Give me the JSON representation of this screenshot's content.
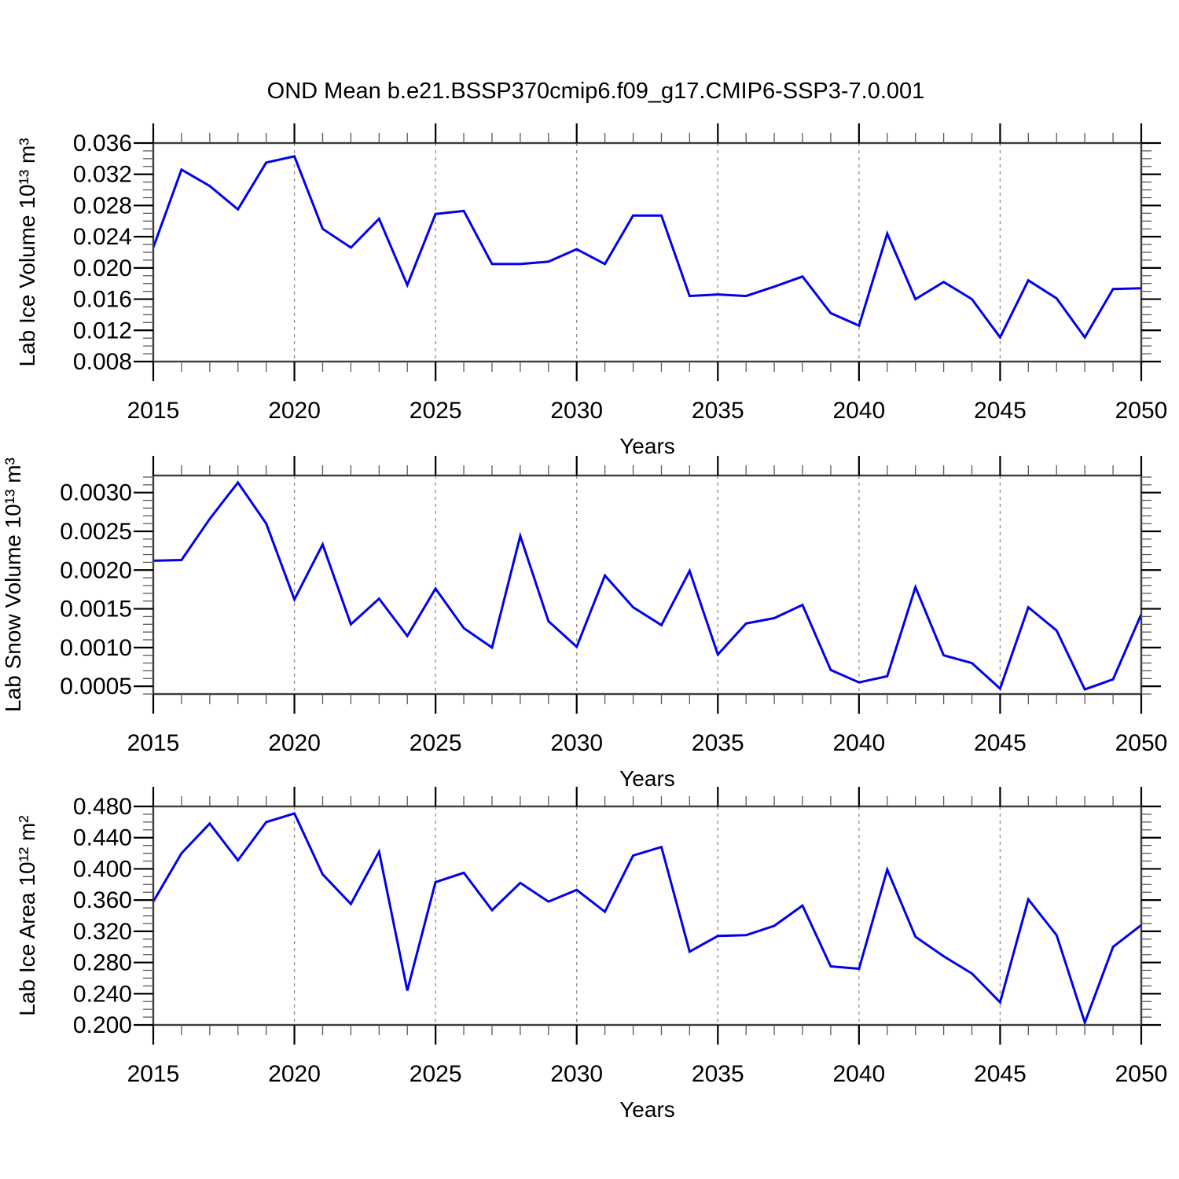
{
  "figure": {
    "title": "OND Mean b.e21.BSSP370cmip6.f09_g17.CMIP6-SSP3-7.0.001",
    "line_color": "#0000ee",
    "grid_color": "#8c8c8c",
    "background": "#ffffff"
  },
  "chart_data": [
    {
      "type": "line",
      "name": "ice-volume",
      "ylabel": "Lab Ice Volume 10¹³ m³",
      "xlabel": "Years",
      "xlim": [
        2015,
        2050
      ],
      "ylim": [
        0.008,
        0.036
      ],
      "x_major_ticks": [
        2015,
        2020,
        2025,
        2030,
        2035,
        2040,
        2045,
        2050
      ],
      "x_tick_labels": [
        "2015",
        "2020",
        "2025",
        "2030",
        "2035",
        "2040",
        "2045",
        "2050"
      ],
      "x_minor_step": 1,
      "y_major_ticks": [
        0.036,
        0.032,
        0.028,
        0.024,
        0.02,
        0.016,
        0.012,
        0.008
      ],
      "y_tick_labels": [
        "0.036",
        "0.032",
        "0.028",
        "0.024",
        "0.020",
        "0.016",
        "0.012",
        "0.008"
      ],
      "y_minor_step": 0.001,
      "gridline_years": [
        2020,
        2025,
        2030,
        2035,
        2040,
        2045
      ],
      "grid": true,
      "legend": null,
      "x": [
        2015,
        2016,
        2017,
        2018,
        2019,
        2020,
        2021,
        2022,
        2023,
        2024,
        2025,
        2026,
        2027,
        2028,
        2029,
        2030,
        2031,
        2032,
        2033,
        2034,
        2035,
        2036,
        2037,
        2038,
        2039,
        2040,
        2041,
        2042,
        2043,
        2044,
        2045,
        2046,
        2047,
        2048,
        2049,
        2050
      ],
      "values": [
        0.0226,
        0.0326,
        0.0305,
        0.0275,
        0.0335,
        0.0343,
        0.025,
        0.0226,
        0.0263,
        0.0178,
        0.0269,
        0.0273,
        0.0205,
        0.0205,
        0.0208,
        0.0224,
        0.0205,
        0.0267,
        0.0267,
        0.0164,
        0.0166,
        0.0164,
        0.0176,
        0.0189,
        0.0142,
        0.0126,
        0.0244,
        0.016,
        0.0182,
        0.016,
        0.0111,
        0.0184,
        0.0161,
        0.0111,
        0.0173,
        0.0174
      ]
    },
    {
      "type": "line",
      "name": "snow-volume",
      "ylabel": "Lab Snow Volume 10¹³ m³",
      "xlabel": "Years",
      "xlim": [
        2015,
        2050
      ],
      "ylim": [
        0.0004,
        0.00322
      ],
      "x_major_ticks": [
        2015,
        2020,
        2025,
        2030,
        2035,
        2040,
        2045,
        2050
      ],
      "x_tick_labels": [
        "2015",
        "2020",
        "2025",
        "2030",
        "2035",
        "2040",
        "2045",
        "2050"
      ],
      "x_minor_step": 1,
      "y_major_ticks": [
        0.003,
        0.0025,
        0.002,
        0.0015,
        0.001,
        0.0005
      ],
      "y_tick_labels": [
        "0.0030",
        "0.0025",
        "0.0020",
        "0.0015",
        "0.0010",
        "0.0005"
      ],
      "y_minor_step": 0.0001,
      "gridline_years": [
        2020,
        2025,
        2030,
        2035,
        2040,
        2045
      ],
      "grid": true,
      "legend": null,
      "x": [
        2015,
        2016,
        2017,
        2018,
        2019,
        2020,
        2021,
        2022,
        2023,
        2024,
        2025,
        2026,
        2027,
        2028,
        2029,
        2030,
        2031,
        2032,
        2033,
        2034,
        2035,
        2036,
        2037,
        2038,
        2039,
        2040,
        2041,
        2042,
        2043,
        2044,
        2045,
        2046,
        2047,
        2048,
        2049,
        2050
      ],
      "values": [
        0.00212,
        0.00213,
        0.00266,
        0.00313,
        0.0026,
        0.00162,
        0.00233,
        0.0013,
        0.00163,
        0.00115,
        0.00176,
        0.00125,
        0.001,
        0.00244,
        0.00134,
        0.00101,
        0.00193,
        0.00152,
        0.00129,
        0.00199,
        0.00091,
        0.00131,
        0.00138,
        0.00155,
        0.00071,
        0.00055,
        0.00063,
        0.00178,
        0.0009,
        0.0008,
        0.00047,
        0.00152,
        0.00122,
        0.00046,
        0.00059,
        0.00143
      ]
    },
    {
      "type": "line",
      "name": "ice-area",
      "ylabel": "Lab Ice Area 10¹² m²",
      "xlabel": "Years",
      "xlim": [
        2015,
        2050
      ],
      "ylim": [
        0.2,
        0.48
      ],
      "x_major_ticks": [
        2015,
        2020,
        2025,
        2030,
        2035,
        2040,
        2045,
        2050
      ],
      "x_tick_labels": [
        "2015",
        "2020",
        "2025",
        "2030",
        "2035",
        "2040",
        "2045",
        "2050"
      ],
      "x_minor_step": 1,
      "y_major_ticks": [
        0.48,
        0.44,
        0.4,
        0.36,
        0.32,
        0.28,
        0.24,
        0.2
      ],
      "y_tick_labels": [
        "0.480",
        "0.440",
        "0.400",
        "0.360",
        "0.320",
        "0.280",
        "0.240",
        "0.200"
      ],
      "y_minor_step": 0.01,
      "gridline_years": [
        2020,
        2025,
        2030,
        2035,
        2040,
        2045
      ],
      "grid": true,
      "legend": null,
      "x": [
        2015,
        2016,
        2017,
        2018,
        2019,
        2020,
        2021,
        2022,
        2023,
        2024,
        2025,
        2026,
        2027,
        2028,
        2029,
        2030,
        2031,
        2032,
        2033,
        2034,
        2035,
        2036,
        2037,
        2038,
        2039,
        2040,
        2041,
        2042,
        2043,
        2044,
        2045,
        2046,
        2047,
        2048,
        2049,
        2050
      ],
      "values": [
        0.358,
        0.42,
        0.458,
        0.411,
        0.46,
        0.471,
        0.393,
        0.355,
        0.422,
        0.244,
        0.383,
        0.395,
        0.347,
        0.382,
        0.358,
        0.373,
        0.345,
        0.417,
        0.428,
        0.294,
        0.314,
        0.315,
        0.327,
        0.353,
        0.275,
        0.272,
        0.399,
        0.313,
        0.288,
        0.266,
        0.229,
        0.361,
        0.315,
        0.203,
        0.3,
        0.328
      ]
    }
  ]
}
